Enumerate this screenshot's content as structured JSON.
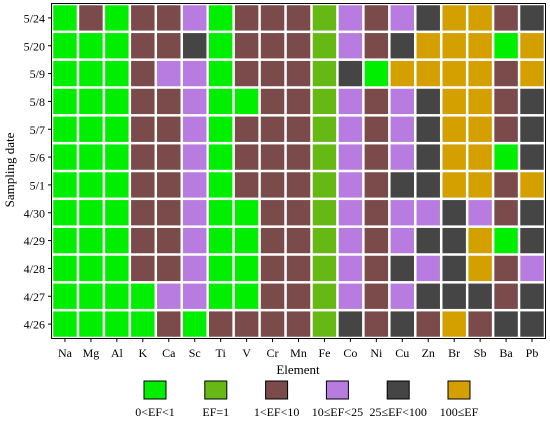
{
  "chart_data": {
    "type": "heatmap",
    "xlabel": "Element",
    "ylabel": "Sampling date",
    "x_categories": [
      "Na",
      "Mg",
      "Al",
      "K",
      "Ca",
      "Sc",
      "Ti",
      "V",
      "Cr",
      "Mn",
      "Fe",
      "Co",
      "Ni",
      "Cu",
      "Zn",
      "Br",
      "Sb",
      "Ba",
      "Pb"
    ],
    "y_categories": [
      "5/24",
      "5/20",
      "5/9",
      "5/8",
      "5/7",
      "5/6",
      "5/1",
      "4/30",
      "4/29",
      "4/28",
      "4/27",
      "4/26"
    ],
    "classes": [
      {
        "id": 0,
        "label": "0<EF<1",
        "color": "#00ee00"
      },
      {
        "id": 1,
        "label": "EF=1",
        "color": "#66b814"
      },
      {
        "id": 2,
        "label": "1<EF<10",
        "color": "#7b4a4a"
      },
      {
        "id": 3,
        "label": "10≤EF<25",
        "color": "#b87ce0"
      },
      {
        "id": 4,
        "label": "25≤EF<100",
        "color": "#454545"
      },
      {
        "id": 5,
        "label": "100≤EF",
        "color": "#d4a000"
      }
    ],
    "matrix": [
      [
        0,
        2,
        0,
        2,
        2,
        3,
        0,
        2,
        2,
        2,
        1,
        3,
        2,
        3,
        4,
        5,
        5,
        2,
        4
      ],
      [
        0,
        0,
        0,
        2,
        2,
        4,
        0,
        2,
        2,
        2,
        1,
        3,
        2,
        4,
        5,
        5,
        5,
        0,
        5
      ],
      [
        0,
        0,
        0,
        2,
        3,
        3,
        0,
        2,
        2,
        2,
        1,
        4,
        0,
        5,
        5,
        5,
        5,
        2,
        5
      ],
      [
        0,
        0,
        0,
        2,
        2,
        3,
        0,
        0,
        2,
        2,
        1,
        3,
        2,
        3,
        4,
        5,
        5,
        2,
        4
      ],
      [
        0,
        0,
        0,
        2,
        2,
        3,
        0,
        2,
        2,
        2,
        1,
        3,
        2,
        3,
        4,
        5,
        5,
        2,
        4
      ],
      [
        0,
        0,
        0,
        2,
        2,
        3,
        0,
        2,
        2,
        2,
        1,
        3,
        2,
        3,
        4,
        5,
        5,
        0,
        4
      ],
      [
        0,
        0,
        0,
        2,
        2,
        3,
        0,
        2,
        2,
        2,
        1,
        3,
        2,
        4,
        4,
        5,
        5,
        2,
        5
      ],
      [
        0,
        0,
        0,
        2,
        2,
        3,
        0,
        0,
        2,
        2,
        1,
        3,
        2,
        3,
        3,
        4,
        3,
        2,
        4
      ],
      [
        0,
        0,
        0,
        2,
        2,
        3,
        0,
        0,
        2,
        2,
        1,
        3,
        2,
        3,
        4,
        4,
        5,
        0,
        4
      ],
      [
        0,
        0,
        0,
        2,
        2,
        3,
        0,
        0,
        2,
        2,
        1,
        3,
        2,
        4,
        3,
        4,
        5,
        2,
        3
      ],
      [
        0,
        0,
        0,
        0,
        3,
        3,
        0,
        0,
        2,
        2,
        1,
        3,
        2,
        3,
        4,
        4,
        4,
        2,
        4
      ],
      [
        0,
        0,
        0,
        0,
        2,
        0,
        2,
        2,
        2,
        2,
        1,
        4,
        2,
        4,
        2,
        5,
        2,
        4,
        4
      ]
    ]
  }
}
